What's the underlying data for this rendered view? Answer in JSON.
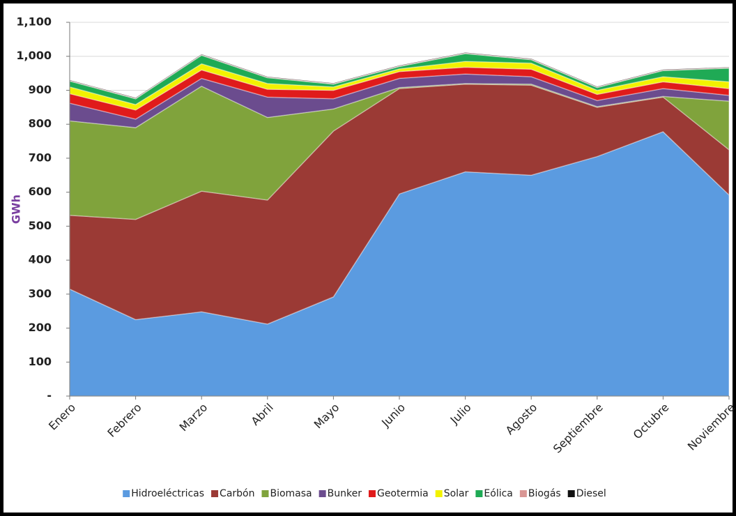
{
  "chart_data": {
    "type": "stacked_area",
    "y_label": "GWh",
    "categories": [
      "Enero",
      "Febrero",
      "Marzo",
      "Abril",
      "Mayo",
      "Junio",
      "Julio",
      "Agosto",
      "Septiembre",
      "Octubre",
      "Noviembre"
    ],
    "series": [
      {
        "name": "Hidroeléctricas",
        "color": "#5b9be0",
        "values": [
          315,
          225,
          248,
          212,
          292,
          595,
          660,
          650,
          705,
          778,
          592
        ]
      },
      {
        "name": "Carbón",
        "color": "#9b3a35",
        "values": [
          217,
          295,
          355,
          365,
          488,
          310,
          258,
          265,
          145,
          102,
          133
        ]
      },
      {
        "name": "Biomasa",
        "color": "#80a33c",
        "values": [
          278,
          270,
          309,
          243,
          65,
          3,
          2,
          3,
          2,
          2,
          143
        ]
      },
      {
        "name": "Bunker",
        "color": "#6b4c8e",
        "values": [
          52,
          25,
          23,
          60,
          30,
          27,
          28,
          22,
          18,
          23,
          17
        ]
      },
      {
        "name": "Geotermia",
        "color": "#e01b1b",
        "values": [
          28,
          27,
          25,
          23,
          25,
          20,
          20,
          22,
          18,
          20,
          20
        ]
      },
      {
        "name": "Solar",
        "color": "#f2f200",
        "values": [
          20,
          16,
          18,
          17,
          10,
          8,
          17,
          18,
          12,
          15,
          20
        ]
      },
      {
        "name": "Eólica",
        "color": "#1faa55",
        "values": [
          17,
          17,
          25,
          17,
          8,
          7,
          23,
          10,
          8,
          18,
          40
        ]
      },
      {
        "name": "Biogás",
        "color": "#d99694",
        "values": [
          2,
          2,
          2,
          2,
          2,
          2,
          2,
          2,
          2,
          2,
          2
        ]
      },
      {
        "name": "Diesel",
        "color": "#111111",
        "values": [
          1,
          1,
          1,
          1,
          1,
          1,
          1,
          1,
          1,
          1,
          1
        ]
      }
    ],
    "ylim": [
      0,
      1100
    ],
    "yticks": [
      {
        "value": 0,
        "label": "-"
      },
      100,
      200,
      300,
      400,
      500,
      600,
      700,
      800,
      900,
      {
        "value": 1000,
        "label": "1,000"
      },
      {
        "value": 1100,
        "label": "1,100"
      }
    ],
    "grid": true
  }
}
